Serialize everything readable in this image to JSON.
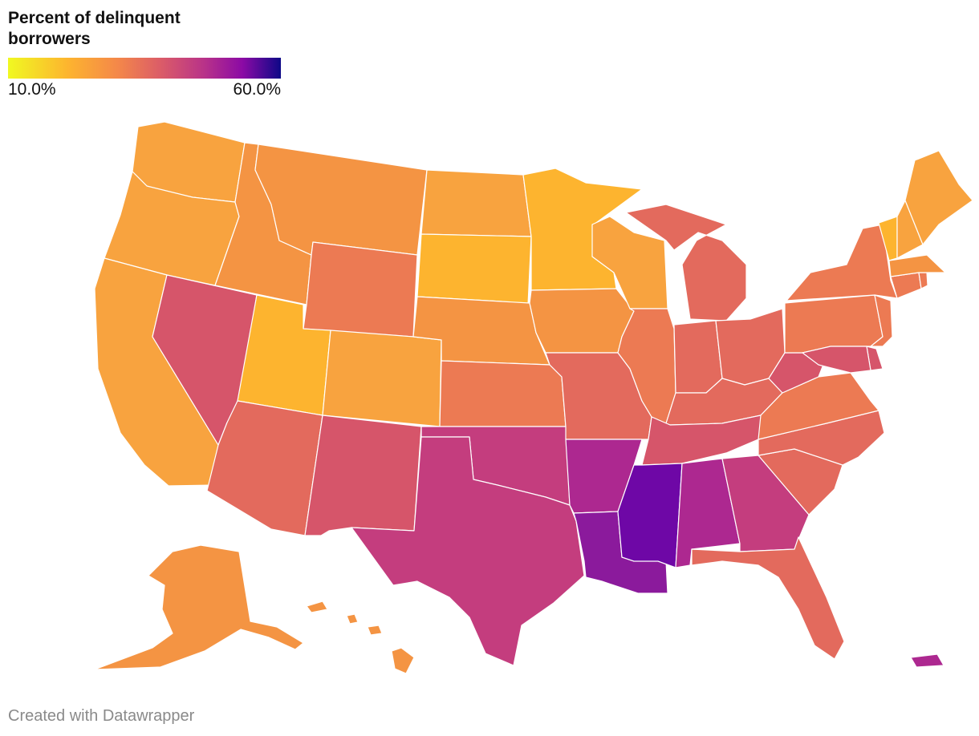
{
  "legend": {
    "title_line1": "Percent of delinquent",
    "title_line2": "borrowers",
    "min_label": "10.0%",
    "max_label": "60.0%",
    "scale": "plasma",
    "range": [
      10.0,
      60.0
    ]
  },
  "footer": {
    "credit": "Created with Datawrapper"
  },
  "colors": {
    "yellow": "#fdb42f",
    "light_orange": "#f8a33f",
    "orange": "#f49443",
    "dark_orange": "#ec7a53",
    "salmon": "#e36a5d",
    "rose": "#d6556a",
    "magenta": "#c43d7e",
    "purple_magenta": "#ad2890",
    "purple": "#8b1a9c",
    "deep_purple": "#6e07a6"
  },
  "states": [
    {
      "abbr": "WA",
      "color": "light_orange"
    },
    {
      "abbr": "OR",
      "color": "light_orange"
    },
    {
      "abbr": "CA",
      "color": "light_orange"
    },
    {
      "abbr": "ID",
      "color": "orange"
    },
    {
      "abbr": "NV",
      "color": "rose"
    },
    {
      "abbr": "MT",
      "color": "orange"
    },
    {
      "abbr": "WY",
      "color": "dark_orange"
    },
    {
      "abbr": "UT",
      "color": "yellow"
    },
    {
      "abbr": "CO",
      "color": "light_orange"
    },
    {
      "abbr": "AZ",
      "color": "salmon"
    },
    {
      "abbr": "NM",
      "color": "rose"
    },
    {
      "abbr": "ND",
      "color": "light_orange"
    },
    {
      "abbr": "SD",
      "color": "yellow"
    },
    {
      "abbr": "NE",
      "color": "orange"
    },
    {
      "abbr": "KS",
      "color": "dark_orange"
    },
    {
      "abbr": "OK",
      "color": "magenta"
    },
    {
      "abbr": "TX",
      "color": "magenta"
    },
    {
      "abbr": "MN",
      "color": "yellow"
    },
    {
      "abbr": "IA",
      "color": "orange"
    },
    {
      "abbr": "MO",
      "color": "salmon"
    },
    {
      "abbr": "AR",
      "color": "purple_magenta"
    },
    {
      "abbr": "LA",
      "color": "purple"
    },
    {
      "abbr": "WI",
      "color": "light_orange"
    },
    {
      "abbr": "IL",
      "color": "dark_orange"
    },
    {
      "abbr": "MI",
      "color": "salmon"
    },
    {
      "abbr": "IN",
      "color": "salmon"
    },
    {
      "abbr": "OH",
      "color": "salmon"
    },
    {
      "abbr": "KY",
      "color": "salmon"
    },
    {
      "abbr": "TN",
      "color": "rose"
    },
    {
      "abbr": "MS",
      "color": "deep_purple"
    },
    {
      "abbr": "AL",
      "color": "purple_magenta"
    },
    {
      "abbr": "GA",
      "color": "magenta"
    },
    {
      "abbr": "FL",
      "color": "salmon"
    },
    {
      "abbr": "SC",
      "color": "salmon"
    },
    {
      "abbr": "NC",
      "color": "salmon"
    },
    {
      "abbr": "VA",
      "color": "dark_orange"
    },
    {
      "abbr": "WV",
      "color": "rose"
    },
    {
      "abbr": "PA",
      "color": "dark_orange"
    },
    {
      "abbr": "NY",
      "color": "dark_orange"
    },
    {
      "abbr": "VT",
      "color": "yellow"
    },
    {
      "abbr": "NH",
      "color": "light_orange"
    },
    {
      "abbr": "ME",
      "color": "light_orange"
    },
    {
      "abbr": "MA",
      "color": "orange"
    },
    {
      "abbr": "CT",
      "color": "dark_orange"
    },
    {
      "abbr": "NJ",
      "color": "dark_orange"
    },
    {
      "abbr": "DE",
      "color": "rose"
    },
    {
      "abbr": "MD",
      "color": "rose"
    },
    {
      "abbr": "RI",
      "color": "dark_orange"
    },
    {
      "abbr": "AK",
      "color": "orange"
    },
    {
      "abbr": "HI",
      "color": "orange"
    },
    {
      "abbr": "PR",
      "color": "purple_magenta"
    }
  ]
}
